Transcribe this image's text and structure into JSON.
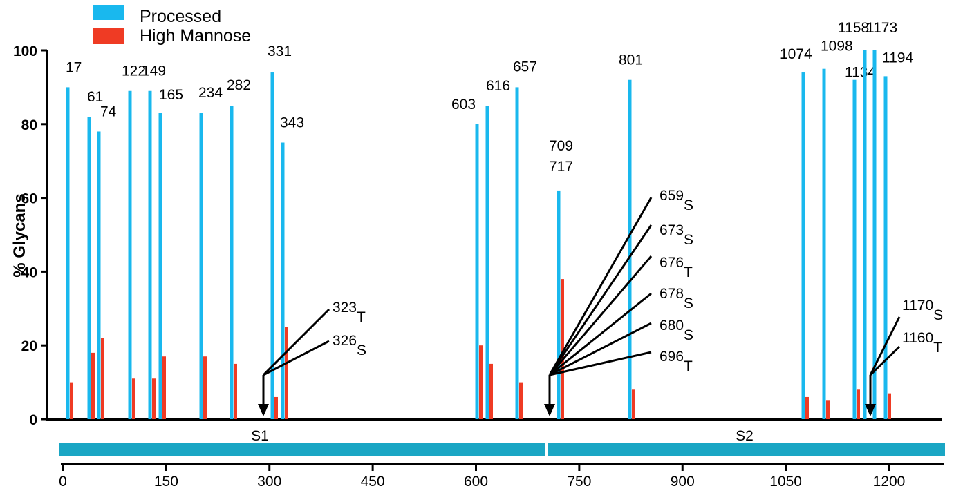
{
  "chart_data": {
    "type": "bar",
    "ylabel": "% Glycans",
    "ylim": [
      0,
      100
    ],
    "yticks": [
      0,
      20,
      40,
      60,
      80,
      100
    ],
    "xticks": [
      0,
      150,
      300,
      450,
      600,
      750,
      900,
      1050,
      1200
    ],
    "xlim": [
      0,
      1273
    ],
    "legend": {
      "position": "top-left",
      "entries": [
        {
          "name": "Processed",
          "color": "#19b8ee"
        },
        {
          "name": "High Mannose",
          "color": "#ef3b24"
        }
      ]
    },
    "series": [
      {
        "name": "Processed",
        "color": "#19b8ee"
      },
      {
        "name": "High Mannose",
        "color": "#ef3b24"
      }
    ],
    "sites": [
      {
        "site": "17",
        "label": "17",
        "processed": 90,
        "high_mannose": 10
      },
      {
        "site": "61",
        "label": "61",
        "processed": 82,
        "high_mannose": 18
      },
      {
        "site": "74",
        "label": "74",
        "processed": 78,
        "high_mannose": 22
      },
      {
        "site": "122",
        "label": "122",
        "processed": 89,
        "high_mannose": 11
      },
      {
        "site": "149",
        "label": "149",
        "processed": 89,
        "high_mannose": 11
      },
      {
        "site": "165",
        "label": "165",
        "processed": 83,
        "high_mannose": 17
      },
      {
        "site": "234",
        "label": "234",
        "processed": 83,
        "high_mannose": 17
      },
      {
        "site": "282",
        "label": "282",
        "processed": 85,
        "high_mannose": 15
      },
      {
        "site": "331",
        "label": "331",
        "processed": 94,
        "high_mannose": 6
      },
      {
        "site": "343",
        "label": "343",
        "processed": 75,
        "high_mannose": 25
      },
      {
        "site": "603",
        "label": "603",
        "processed": 80,
        "high_mannose": 20
      },
      {
        "site": "616",
        "label": "616",
        "processed": 85,
        "high_mannose": 15
      },
      {
        "site": "657",
        "label": "657",
        "processed": 90,
        "high_mannose": 10
      },
      {
        "site": "709/717",
        "label": [
          "709",
          "717"
        ],
        "processed": 62,
        "high_mannose": 38
      },
      {
        "site": "801",
        "label": "801",
        "processed": 92,
        "high_mannose": 8
      },
      {
        "site": "1074",
        "label": "1074",
        "processed": 94,
        "high_mannose": 6
      },
      {
        "site": "1098",
        "label": "1098",
        "processed": 95,
        "high_mannose": 5
      },
      {
        "site": "1134",
        "label": "1134",
        "processed": 92,
        "high_mannose": 8
      },
      {
        "site": "1158",
        "label": "1158",
        "processed": 100,
        "high_mannose": 0
      },
      {
        "site": "1173",
        "label": "1173",
        "processed": 100,
        "high_mannose": 0
      },
      {
        "site": "1194",
        "label": "1194",
        "processed": 93,
        "high_mannose": 7
      }
    ],
    "regions": [
      {
        "name": "S1",
        "start": 0,
        "end": 700
      },
      {
        "name": "S2",
        "start": 700,
        "end": 1273
      }
    ],
    "annotations": [
      {
        "position": 316,
        "labels": [
          {
            "num": "323",
            "sub": "T"
          },
          {
            "num": "326",
            "sub": "S"
          }
        ]
      },
      {
        "position": 703,
        "labels": [
          {
            "num": "659",
            "sub": "S"
          },
          {
            "num": "673",
            "sub": "S"
          },
          {
            "num": "676",
            "sub": "T"
          },
          {
            "num": "678",
            "sub": "S"
          },
          {
            "num": "680",
            "sub": "S"
          },
          {
            "num": "696",
            "sub": "T"
          }
        ]
      },
      {
        "position": 1165,
        "labels": [
          {
            "num": "1170",
            "sub": "S"
          },
          {
            "num": "1160",
            "sub": "T"
          }
        ]
      }
    ]
  }
}
